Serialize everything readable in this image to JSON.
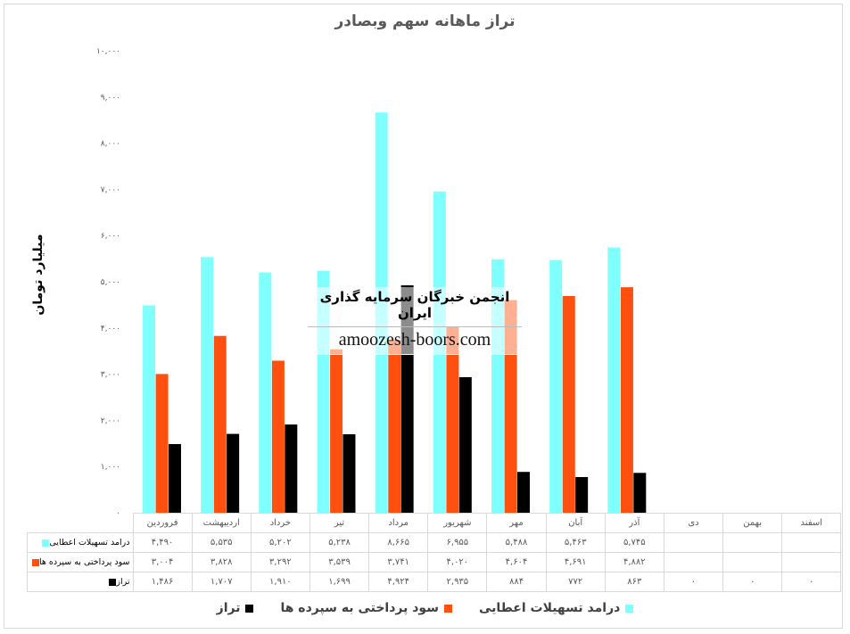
{
  "chart_data": {
    "type": "bar",
    "title": "تراز ماهانه سهم وبصادر",
    "ylabel": "میلیارد تومان",
    "xlabel": "",
    "ylim": [
      0,
      10000
    ],
    "yticks": [
      0,
      1000,
      2000,
      3000,
      4000,
      5000,
      6000,
      7000,
      8000,
      9000,
      10000
    ],
    "ytick_labels": [
      "۰",
      "۱,۰۰۰",
      "۲,۰۰۰",
      "۳,۰۰۰",
      "۴,۰۰۰",
      "۵,۰۰۰",
      "۶,۰۰۰",
      "۷,۰۰۰",
      "۸,۰۰۰",
      "۹,۰۰۰",
      "۱۰,۰۰۰"
    ],
    "categories": [
      "فروردین",
      "اردیبهشت",
      "خرداد",
      "تیر",
      "مرداد",
      "شهریور",
      "مهر",
      "آبان",
      "آذر",
      "دی",
      "بهمن",
      "اسفند"
    ],
    "legend_position": "bottom",
    "series": [
      {
        "name": "درامد تسهیلات اعطایی",
        "color": "#80FFFF",
        "values": [
          4490,
          5535,
          5202,
          5238,
          8665,
          6955,
          5488,
          5463,
          5745,
          null,
          null,
          null
        ],
        "labels": [
          "۴,۴۹۰",
          "۵,۵۳۵",
          "۵,۲۰۲",
          "۵,۲۳۸",
          "۸,۶۶۵",
          "۶,۹۵۵",
          "۵,۴۸۸",
          "۵,۴۶۳",
          "۵,۷۴۵",
          "",
          "",
          ""
        ]
      },
      {
        "name": "سود پرداختی به سپرده ها",
        "color": "#FF5010",
        "values": [
          3004,
          3828,
          3292,
          3539,
          3741,
          4020,
          4604,
          4691,
          4882,
          null,
          null,
          null
        ],
        "labels": [
          "۳,۰۰۴",
          "۳,۸۲۸",
          "۳,۲۹۲",
          "۳,۵۳۹",
          "۳,۷۴۱",
          "۴,۰۲۰",
          "۴,۶۰۴",
          "۴,۶۹۱",
          "۴,۸۸۲",
          "",
          "",
          ""
        ]
      },
      {
        "name": "تراز",
        "color": "#000000",
        "values": [
          1486,
          1707,
          1910,
          1699,
          4924,
          2935,
          884,
          772,
          863,
          0,
          0,
          0
        ],
        "labels": [
          "۱,۴۸۶",
          "۱,۷۰۷",
          "۱,۹۱۰",
          "۱,۶۹۹",
          "۴,۹۲۴",
          "۲,۹۳۵",
          "۸۸۴",
          "۷۷۲",
          "۸۶۳",
          "۰",
          "۰",
          "۰"
        ]
      }
    ]
  },
  "watermark": {
    "fa": "انجمن خبرگان سرمایه گذاری ایران",
    "en": "amoozesh-boors.com"
  }
}
